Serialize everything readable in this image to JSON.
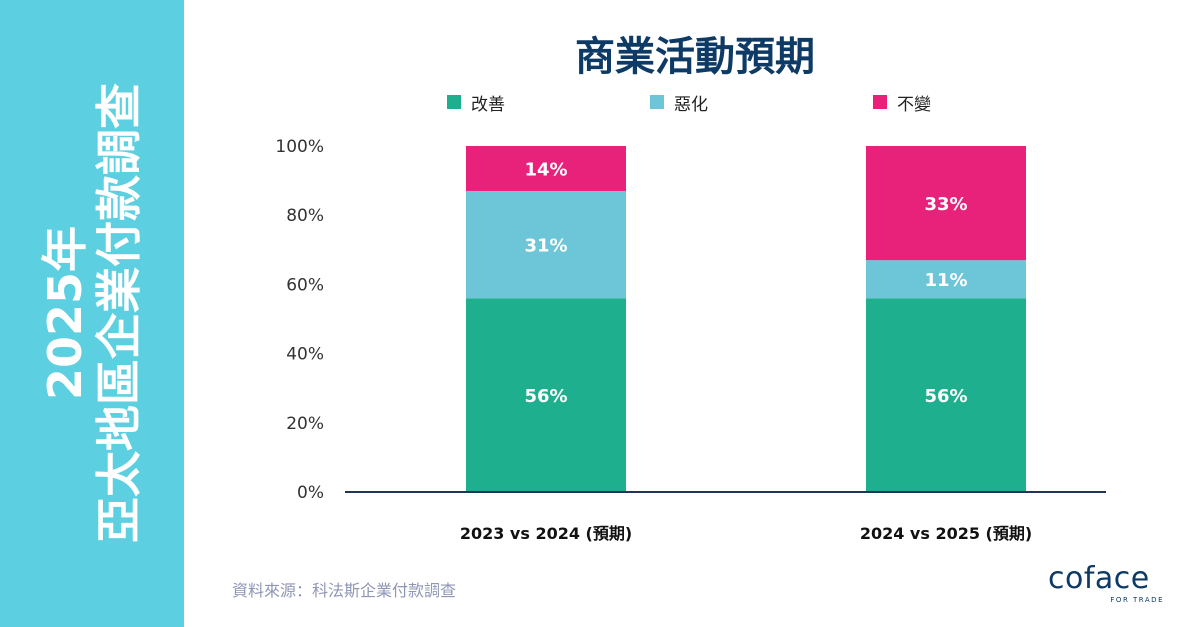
{
  "sidebar": {
    "title_line1": "2025年",
    "title_line2": "亞太地區企業付款調查",
    "background": "#5ccfe0"
  },
  "chart_data": {
    "type": "bar",
    "stacked": true,
    "title": "商業活動預期",
    "categories": [
      "2023 vs 2024 (預期)",
      "2024 vs 2025 (預期)"
    ],
    "series": [
      {
        "name": "改善",
        "values": [
          56,
          56
        ],
        "color": "#1eb08e",
        "labels": [
          "56%",
          "56%"
        ]
      },
      {
        "name": "惡化",
        "values": [
          31,
          11
        ],
        "color": "#6cc6d8",
        "labels": [
          "31%",
          "11%"
        ]
      },
      {
        "name": "不變",
        "values": [
          14,
          33
        ],
        "color": "#e8227a",
        "labels": [
          "14%",
          "33%"
        ]
      }
    ],
    "yticks": [
      "0%",
      "20%",
      "40%",
      "60%",
      "80%",
      "100%"
    ],
    "ylim": [
      0,
      100
    ],
    "grid": false,
    "legend_position": "top"
  },
  "source": "資料來源：科法斯企業付款調查",
  "logo": {
    "text": "coface",
    "tagline": "FOR TRADE"
  }
}
